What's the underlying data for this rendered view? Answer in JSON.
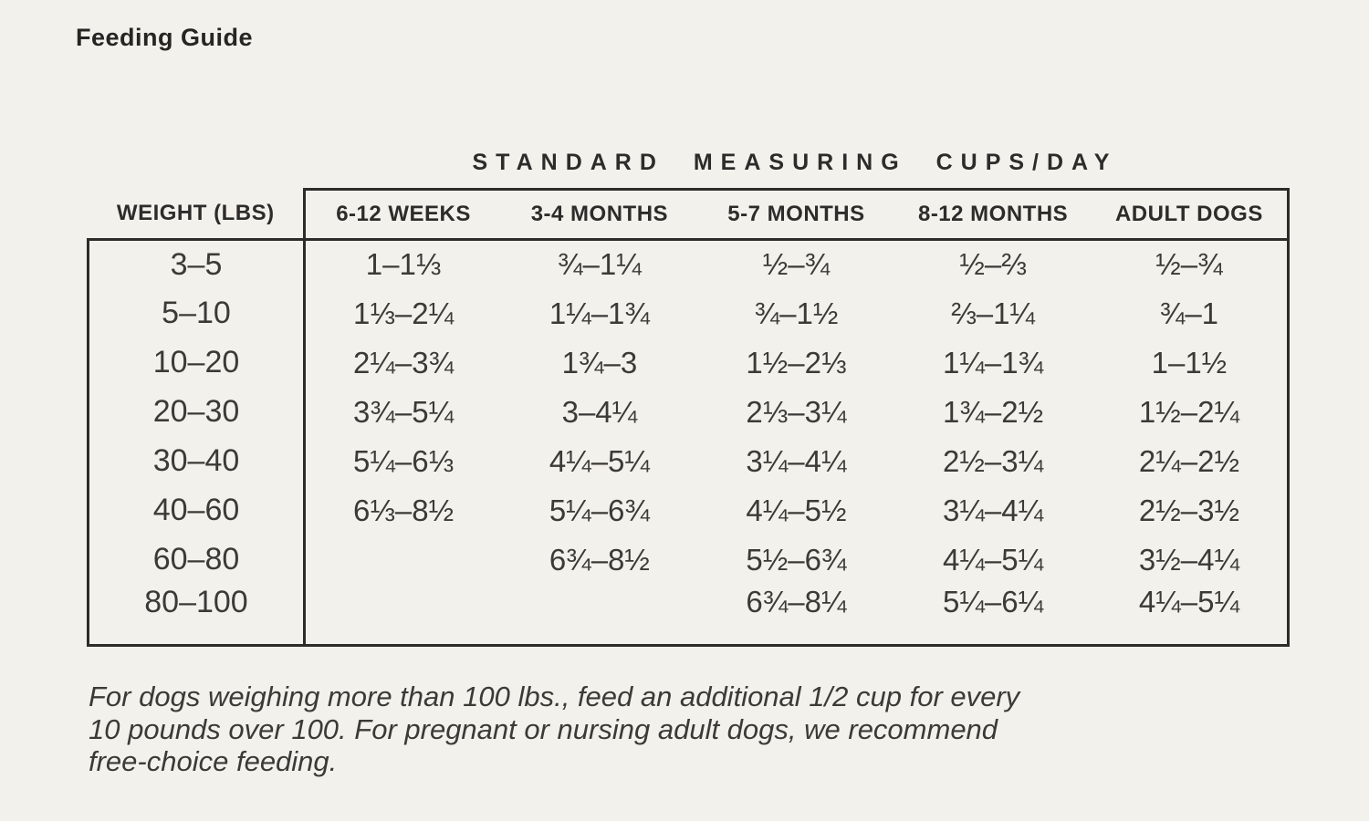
{
  "page": {
    "title": "Feeding Guide",
    "bg_color": "#f3f1ec",
    "text_color": "#2d2c2a"
  },
  "table": {
    "caption": "STANDARD MEASURING CUPS/DAY",
    "weight_header": "WEIGHT (LBS)",
    "age_headers": [
      "6-12 WEEKS",
      "3-4 MONTHS",
      "5-7 MONTHS",
      "8-12 MONTHS",
      "ADULT DOGS"
    ],
    "rows": [
      {
        "weight": "3–5",
        "cups": [
          "1–1⅓",
          "¾–1¼",
          "½–¾",
          "½–⅔",
          "½–¾"
        ]
      },
      {
        "weight": "5–10",
        "cups": [
          "1⅓–2¼",
          "1¼–1¾",
          "¾–1½",
          "⅔–1¼",
          "¾–1"
        ]
      },
      {
        "weight": "10–20",
        "cups": [
          "2¼–3¾",
          "1¾–3",
          "1½–2⅓",
          "1¼–1¾",
          "1–1½"
        ]
      },
      {
        "weight": "20–30",
        "cups": [
          "3¾–5¼",
          "3–4¼",
          "2⅓–3¼",
          "1¾–2½",
          "1½–2¼"
        ]
      },
      {
        "weight": "30–40",
        "cups": [
          "5¼–6⅓",
          "4¼–5¼",
          "3¼–4¼",
          "2½–3¼",
          "2¼–2½"
        ]
      },
      {
        "weight": "40–60",
        "cups": [
          "6⅓–8½",
          "5¼–6¾",
          "4¼–5½",
          "3¼–4¼",
          "2½–3½"
        ]
      },
      {
        "weight": "60–80",
        "cups": [
          "",
          "6¾–8½",
          "5½–6¾",
          "4¼–5¼",
          "3½–4¼"
        ]
      },
      {
        "weight": "80–100",
        "cups": [
          "",
          "",
          "6¾–8¼",
          "5¼–6¼",
          "4¼–5¼"
        ]
      }
    ]
  },
  "footnote": {
    "lines": [
      "For dogs weighing more than 100 lbs., feed an additional 1/2 cup for every",
      "10 pounds over 100. For pregnant or nursing adult dogs, we recommend",
      "free-choice feeding."
    ]
  }
}
